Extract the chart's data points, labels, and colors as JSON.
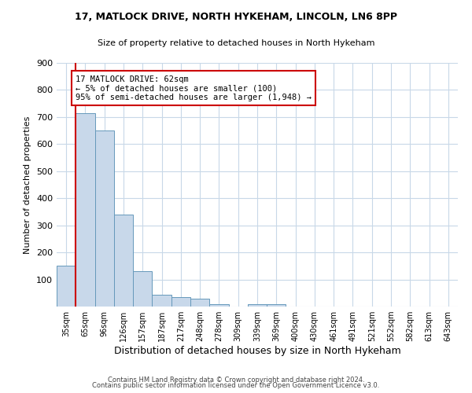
{
  "title1": "17, MATLOCK DRIVE, NORTH HYKEHAM, LINCOLN, LN6 8PP",
  "title2": "Size of property relative to detached houses in North Hykeham",
  "xlabel": "Distribution of detached houses by size in North Hykeham",
  "ylabel": "Number of detached properties",
  "footer1": "Contains HM Land Registry data © Crown copyright and database right 2024.",
  "footer2": "Contains public sector information licensed under the Open Government Licence v3.0.",
  "categories": [
    "35sqm",
    "65sqm",
    "96sqm",
    "126sqm",
    "157sqm",
    "187sqm",
    "217sqm",
    "248sqm",
    "278sqm",
    "309sqm",
    "339sqm",
    "369sqm",
    "400sqm",
    "430sqm",
    "461sqm",
    "491sqm",
    "521sqm",
    "552sqm",
    "582sqm",
    "613sqm",
    "643sqm"
  ],
  "values": [
    150,
    715,
    650,
    340,
    130,
    43,
    35,
    30,
    10,
    0,
    8,
    8,
    0,
    0,
    0,
    0,
    0,
    0,
    0,
    0,
    0
  ],
  "bar_color": "#c8d8ea",
  "bar_edge_color": "#6699bb",
  "annotation_line_color": "#cc0000",
  "annotation_box_text": "17 MATLOCK DRIVE: 62sqm\n← 5% of detached houses are smaller (100)\n95% of semi-detached houses are larger (1,948) →",
  "annotation_box_color": "#ffffff",
  "annotation_box_edge_color": "#cc0000",
  "ylim": [
    0,
    900
  ],
  "yticks": [
    0,
    100,
    200,
    300,
    400,
    500,
    600,
    700,
    800,
    900
  ],
  "bg_color": "#ffffff",
  "grid_color": "#c8d8e8"
}
